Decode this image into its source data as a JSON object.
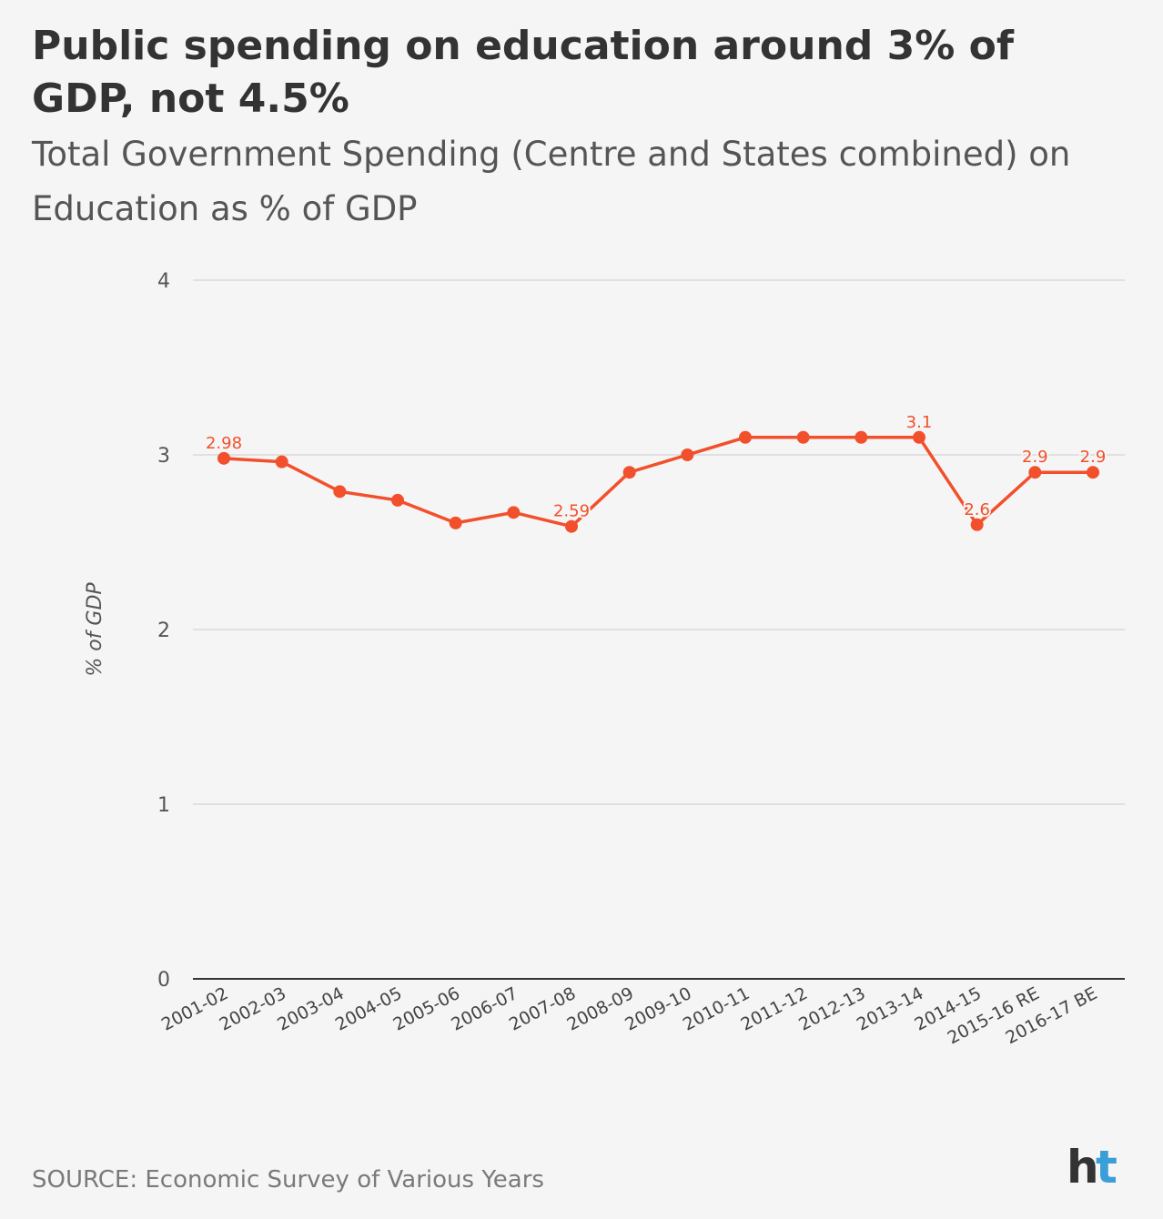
{
  "title": "Public spending on education around 3% of GDP, not 4.5%",
  "subtitle": "Total Government Spending (Centre and States combined) on Education as % of GDP",
  "source": "SOURCE: Economic Survey of Various Years",
  "logo": {
    "text": "ht",
    "color_h": "#333333",
    "color_t": "#3a9fd8"
  },
  "colors": {
    "line": "#f2502c",
    "grid": "#d9d9d9",
    "axis": "#333333",
    "background": "#f5f5f5"
  },
  "chart_data": {
    "type": "line",
    "title": "",
    "xlabel": "",
    "ylabel": "% of GDP",
    "ylim": [
      0,
      4
    ],
    "yticks": [
      0,
      1,
      2,
      3,
      4
    ],
    "grid": true,
    "categories": [
      "2001-02",
      "2002-03",
      "2003-04",
      "2004-05",
      "2005-06",
      "2006-07",
      "2007-08",
      "2008-09",
      "2009-10",
      "2010-11",
      "2011-12",
      "2012-13",
      "2013-14",
      "2014-15",
      "2015-16 RE",
      "2016-17 BE"
    ],
    "series": [
      {
        "values": [
          2.98,
          2.96,
          2.79,
          2.74,
          2.61,
          2.67,
          2.59,
          2.9,
          3.0,
          3.1,
          3.1,
          3.1,
          3.1,
          2.6,
          2.9,
          2.9
        ]
      }
    ],
    "data_labels": [
      {
        "index": 0,
        "text": "2.98"
      },
      {
        "index": 6,
        "text": "2.59"
      },
      {
        "index": 12,
        "text": "3.1"
      },
      {
        "index": 13,
        "text": "2.6"
      },
      {
        "index": 14,
        "text": "2.9"
      },
      {
        "index": 15,
        "text": "2.9"
      }
    ]
  }
}
